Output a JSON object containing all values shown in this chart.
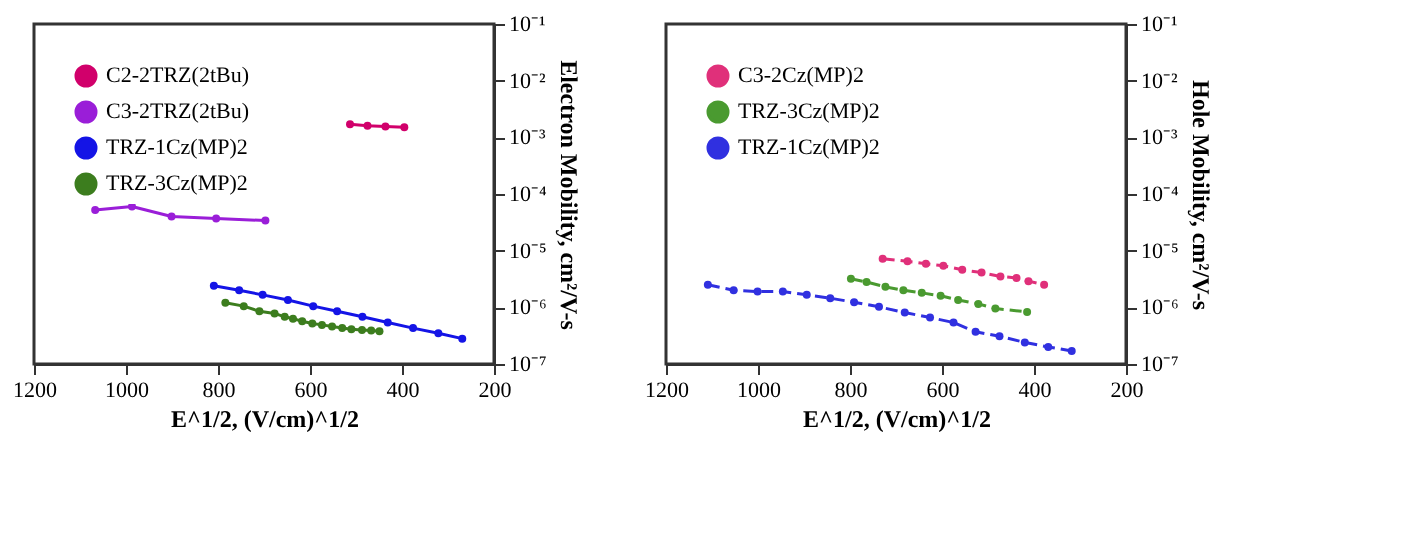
{
  "chart_data": [
    {
      "type": "line",
      "xlabel": "E^1/2, (V/cm)^1/2",
      "ylabel": "Electron Mobility, cm²/V-s",
      "log": "y",
      "xlim": [
        1200,
        200
      ],
      "xticks": [
        1200,
        1000,
        800,
        600,
        400,
        200
      ],
      "ylim": [
        1e-07,
        0.1
      ],
      "yticks": [
        {
          "value": 1e-07,
          "label": "10⁻⁷"
        },
        {
          "value": 1e-06,
          "label": "10⁻⁶"
        },
        {
          "value": 1e-05,
          "label": "10⁻⁵"
        },
        {
          "value": 0.0001,
          "label": "10⁻⁴"
        },
        {
          "value": 0.001,
          "label": "10⁻³"
        },
        {
          "value": 0.01,
          "label": "10⁻²"
        },
        {
          "value": 0.1,
          "label": "10⁻¹"
        }
      ],
      "marker": "circle",
      "line_style": "solid",
      "grid": false,
      "legend": "top left",
      "series": [
        {
          "name": "C2-2TRZ(2tBu)",
          "color": "#d1006b",
          "x": [
            513,
            475,
            436,
            395
          ],
          "values": [
            0.0017,
            0.0016,
            0.00155,
            0.0015
          ]
        },
        {
          "name": "C3-2TRZ(2tBu)",
          "color": "#9a1ed8",
          "x": [
            1067,
            987,
            901,
            804,
            697
          ],
          "values": [
            5.2e-05,
            6e-05,
            4e-05,
            3.7e-05,
            3.4e-05
          ]
        },
        {
          "name": "TRZ-1Cz(MP)2",
          "color": "#1414e6",
          "x": [
            809,
            754,
            703,
            648,
            593,
            541,
            486,
            431,
            376,
            321,
            269
          ],
          "values": [
            2.4e-06,
            2e-06,
            1.66e-06,
            1.35e-06,
            1.05e-06,
            8.5e-07,
            6.8e-07,
            5.4e-07,
            4.3e-07,
            3.5e-07,
            2.8e-07
          ]
        },
        {
          "name": "TRZ-3Cz(MP)2",
          "color": "#3c7d1e",
          "x": [
            784,
            744,
            710,
            677,
            655,
            637,
            617,
            595,
            574,
            552,
            530,
            510,
            487,
            467,
            449
          ],
          "values": [
            1.2e-06,
            1.05e-06,
            8.5e-07,
            7.8e-07,
            6.8e-07,
            6.3e-07,
            5.7e-07,
            5.2e-07,
            4.9e-07,
            4.6e-07,
            4.3e-07,
            4.1e-07,
            4e-07,
            3.9e-07,
            3.8e-07
          ]
        }
      ]
    },
    {
      "type": "line",
      "xlabel": "E^1/2, (V/cm)^1/2",
      "ylabel": "Hole Mobility, cm²/V-s",
      "log": "y",
      "xlim": [
        1200,
        200
      ],
      "xticks": [
        1200,
        1000,
        800,
        600,
        400,
        200
      ],
      "ylim": [
        1e-07,
        0.1
      ],
      "yticks": [
        {
          "value": 1e-07,
          "label": "10⁻⁷"
        },
        {
          "value": 1e-06,
          "label": "10⁻⁶"
        },
        {
          "value": 1e-05,
          "label": "10⁻⁵"
        },
        {
          "value": 0.0001,
          "label": "10⁻⁴"
        },
        {
          "value": 0.001,
          "label": "10⁻³"
        },
        {
          "value": 0.01,
          "label": "10⁻²"
        },
        {
          "value": 0.1,
          "label": "10⁻¹"
        }
      ],
      "marker": "circle",
      "line_style": "dashed",
      "grid": false,
      "legend": "top left",
      "series": [
        {
          "name": "C3-2Cz(MP)2",
          "color": "#e0307a",
          "x": [
            729,
            675,
            635,
            597,
            556,
            514,
            473,
            438,
            412,
            378
          ],
          "values": [
            7.2e-06,
            6.5e-06,
            5.9e-06,
            5.4e-06,
            4.6e-06,
            4.1e-06,
            3.5e-06,
            3.3e-06,
            2.9e-06,
            2.5e-06
          ]
        },
        {
          "name": "TRZ-3Cz(MP)2",
          "color": "#4a9a30",
          "x": [
            798,
            764,
            723,
            684,
            644,
            603,
            565,
            521,
            484,
            415
          ],
          "values": [
            3.2e-06,
            2.8e-06,
            2.3e-06,
            2e-06,
            1.8e-06,
            1.6e-06,
            1.35e-06,
            1.15e-06,
            9.5e-07,
            8.3e-07
          ]
        },
        {
          "name": "TRZ-1Cz(MP)2",
          "color": "#3030e0",
          "x": [
            1109,
            1053,
            1001,
            946,
            894,
            843,
            791,
            737,
            681,
            626,
            575,
            527,
            475,
            420,
            369,
            318
          ],
          "values": [
            2.5e-06,
            2e-06,
            1.9e-06,
            1.9e-06,
            1.66e-06,
            1.45e-06,
            1.23e-06,
            1.02e-06,
            8.1e-07,
            6.6e-07,
            5.4e-07,
            3.7e-07,
            3.1e-07,
            2.4e-07,
            2e-07,
            1.7e-07
          ]
        }
      ]
    }
  ]
}
